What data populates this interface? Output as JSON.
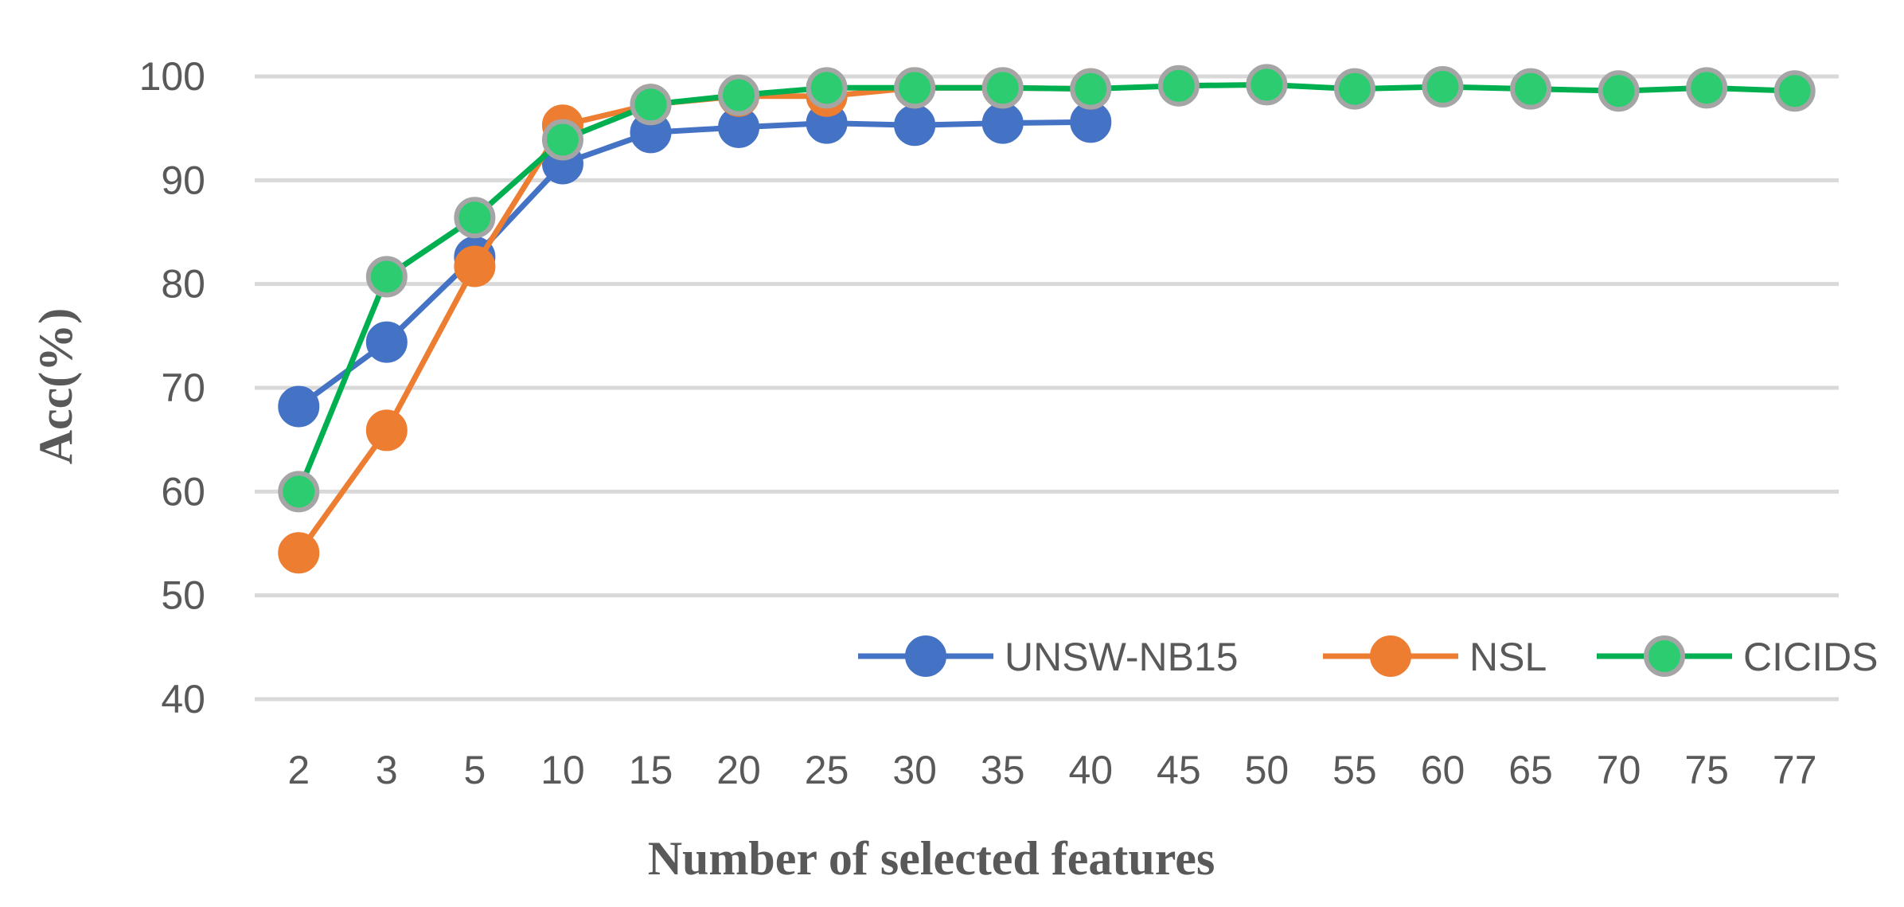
{
  "chart_data": {
    "type": "line",
    "xlabel": "Number of selected features",
    "ylabel": "Acc(%)",
    "categories": [
      "2",
      "3",
      "5",
      "10",
      "15",
      "20",
      "25",
      "30",
      "35",
      "40",
      "45",
      "50",
      "55",
      "60",
      "65",
      "70",
      "75",
      "77"
    ],
    "ylim": [
      40,
      100
    ],
    "yticks": [
      40,
      50,
      60,
      70,
      80,
      90,
      100
    ],
    "grid": true,
    "legend_position": "bottom-right",
    "series": [
      {
        "name": "UNSW-NB15",
        "color": "#4472C4",
        "marker_fill": "#4472C4",
        "marker_edge": "#4472C4",
        "values": [
          68.2,
          74.4,
          82.6,
          91.6,
          94.6,
          95.1,
          95.5,
          95.3,
          95.5,
          95.6,
          null,
          null,
          null,
          null,
          null,
          null,
          null,
          null
        ]
      },
      {
        "name": "NSL",
        "color": "#ED7D31",
        "marker_fill": "#ED7D31",
        "marker_edge": "#ED7D31",
        "values": [
          54.1,
          65.9,
          81.7,
          95.3,
          97.3,
          98.1,
          98.1,
          98.9,
          98.9,
          98.8,
          null,
          null,
          null,
          null,
          null,
          null,
          null,
          null
        ]
      },
      {
        "name": "CICIDS",
        "color": "#00B050",
        "marker_fill": "#2ECC71",
        "marker_edge": "#A5A5A5",
        "values": [
          60.0,
          80.7,
          86.4,
          93.9,
          97.3,
          98.2,
          98.9,
          98.9,
          98.9,
          98.8,
          99.1,
          99.2,
          98.8,
          99.0,
          98.8,
          98.6,
          98.9,
          98.6
        ]
      }
    ]
  }
}
